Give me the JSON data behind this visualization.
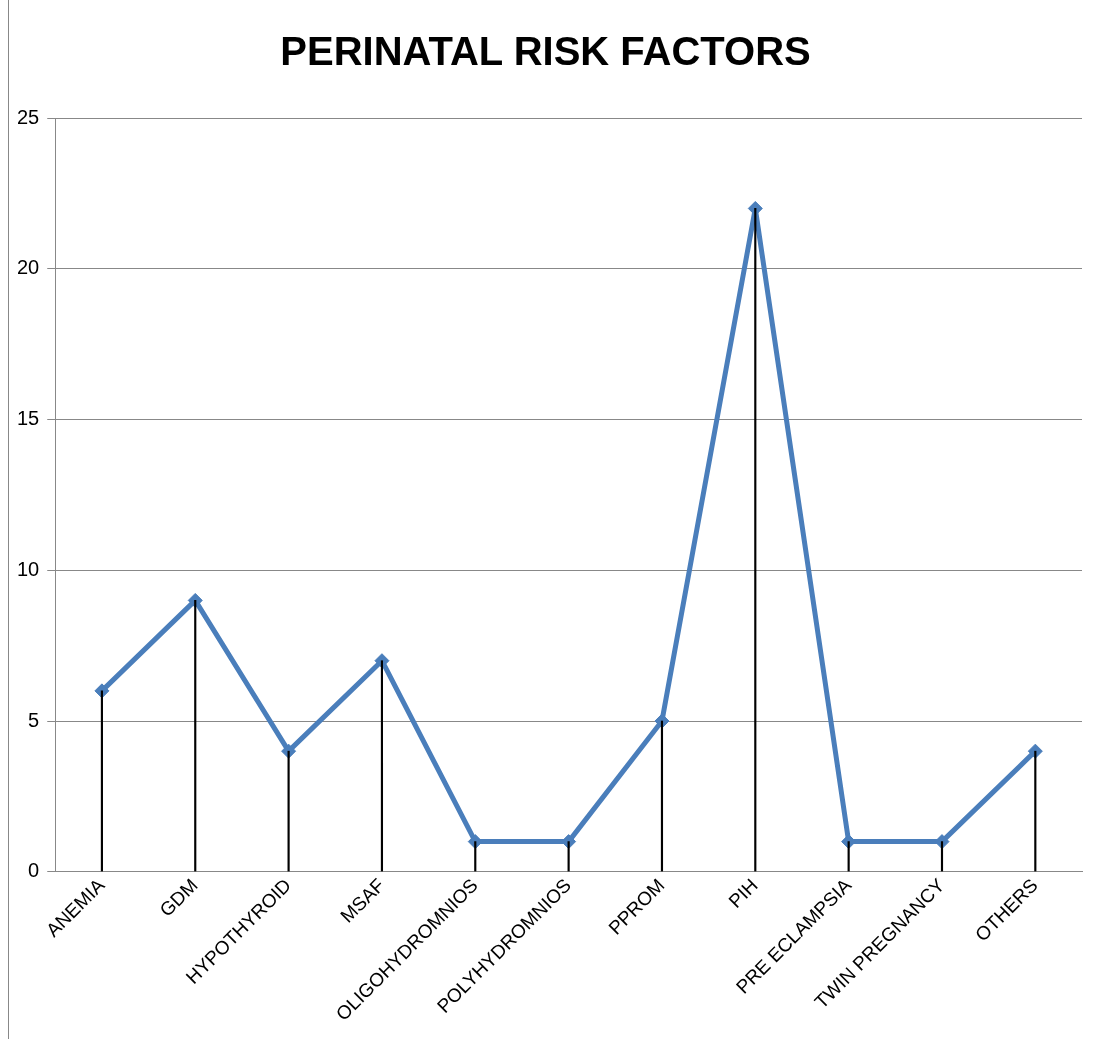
{
  "chart_data": {
    "type": "line",
    "title": "PERINATAL RISK FACTORS",
    "categories": [
      "ANEMIA",
      "GDM",
      "HYPOTHYROID",
      "MSAF",
      "OLIGOHYDROMNIOS",
      "POLYHYDROMNIOS",
      "PPROM",
      "PIH",
      "PRE ECLAMPSIA",
      "TWIN PREGNANCY",
      "OTHERS"
    ],
    "series": [
      {
        "color": "#4a7ebb",
        "values": [
          6,
          9,
          4,
          7,
          1,
          1,
          5,
          22,
          1,
          1,
          4
        ]
      },
      {
        "type": "bar",
        "color": "#000000",
        "values": [
          6,
          9,
          4,
          7,
          1,
          1,
          5,
          22,
          1,
          1,
          4
        ]
      }
    ],
    "ylim": [
      0,
      25
    ],
    "yticks": [
      0,
      5,
      10,
      15,
      20,
      25
    ],
    "grid": "y",
    "legend": false,
    "marker": "diamond",
    "line_style": "solid"
  }
}
